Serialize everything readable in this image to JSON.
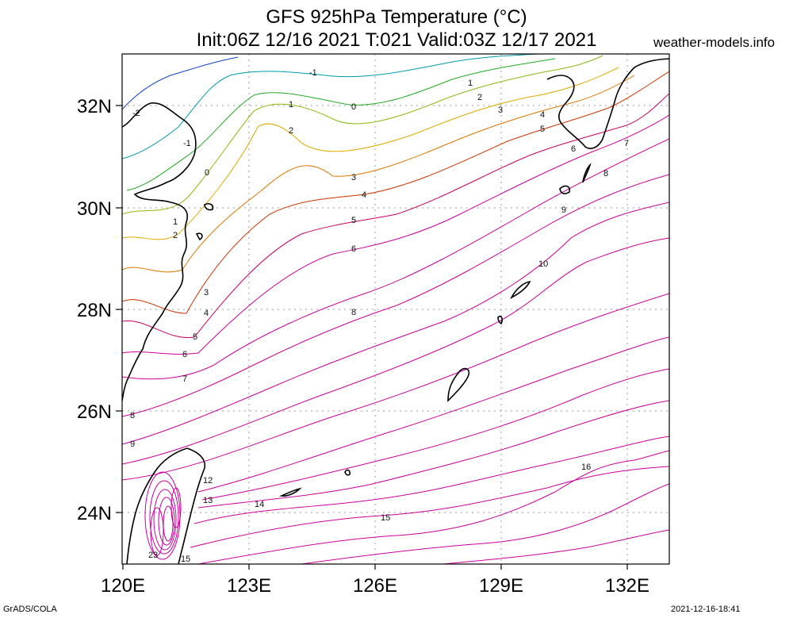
{
  "title_line1": "GFS 925hPa Temperature (°C)",
  "title_line2": "Init:06Z 12/16 2021 T:021 Valid:03Z 12/17 2021",
  "site": "weather-models.info",
  "footer_left": "GrADS/COLA",
  "footer_right": "2021-12-16-18:41",
  "lat_labels": [
    "32N",
    "30N",
    "28N",
    "26N",
    "24N"
  ],
  "lon_labels": [
    "120E",
    "123E",
    "126E",
    "129E",
    "132E"
  ],
  "contour_labels": [
    "-2",
    "-1",
    "0",
    "1",
    "2",
    "3",
    "4",
    "5",
    "6",
    "7",
    "8",
    "9",
    "10",
    "12",
    "13",
    "14",
    "15",
    "16",
    "23"
  ],
  "colors": {
    "frame": "#000000",
    "grid": "#999999",
    "warm": "#cc0099",
    "cold": "#0033cc"
  }
}
